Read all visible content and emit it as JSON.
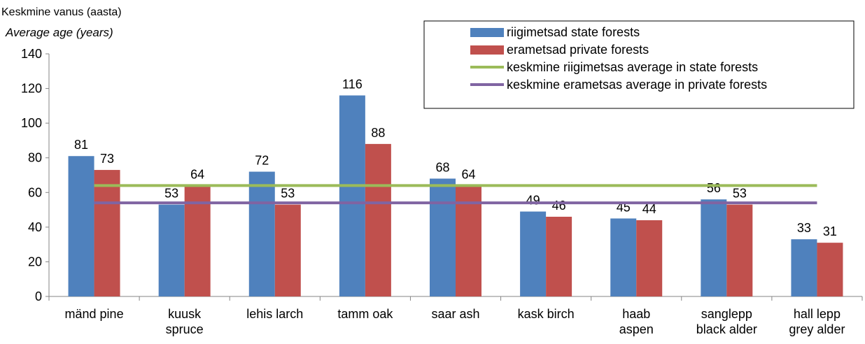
{
  "chart_data": {
    "type": "bar",
    "y_label": "Keskmine vanus (aasta)",
    "y_label_en": "Average age (years)",
    "categories": [
      "mänd pine",
      "kuusk spruce",
      "lehis larch",
      "tamm oak",
      "saar ash",
      "kask birch",
      "haab aspen",
      "sanglepp black alder",
      "hall lepp grey alder"
    ],
    "series": [
      {
        "name": "riigimetsad state forests",
        "color": "#4f81bd",
        "type": "bar",
        "values": [
          81,
          53,
          72,
          116,
          68,
          49,
          45,
          56,
          33
        ]
      },
      {
        "name": "erametsad private forests",
        "color": "#c0504d",
        "type": "bar",
        "values": [
          73,
          64,
          53,
          88,
          64,
          46,
          44,
          53,
          31
        ]
      },
      {
        "name": "keskmine riigimetsas average in state forests",
        "color": "#9bbb59",
        "type": "line",
        "values": [
          64,
          64,
          64,
          64,
          64,
          64,
          64,
          64,
          64
        ]
      },
      {
        "name": "keskmine erametsas average in private forests",
        "color": "#8064a2",
        "type": "line",
        "values": [
          54,
          54,
          54,
          54,
          54,
          54,
          54,
          54,
          54
        ]
      }
    ],
    "ylim": [
      0,
      140
    ],
    "yticks": [
      0,
      20,
      40,
      60,
      80,
      100,
      120,
      140
    ]
  }
}
